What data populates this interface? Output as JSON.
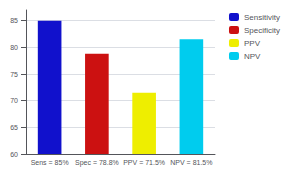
{
  "chart_data": {
    "type": "bar",
    "categories": [
      "Sens = 85%",
      "Spec = 78.8%",
      "PPV = 71.5%",
      "NPV = 81.5%"
    ],
    "series": [
      {
        "name": "Sensitivity",
        "color": "#1111cc",
        "values": [
          85,
          null,
          null,
          null
        ]
      },
      {
        "name": "Specificity",
        "color": "#cc1111",
        "values": [
          null,
          78.8,
          null,
          null
        ]
      },
      {
        "name": "PPV",
        "color": "#eeee00",
        "values": [
          null,
          null,
          71.5,
          null
        ]
      },
      {
        "name": "NPV",
        "color": "#00ccee",
        "values": [
          null,
          null,
          null,
          81.5
        ]
      }
    ],
    "ylim": [
      60,
      87
    ],
    "yticks": [
      60,
      65,
      70,
      75,
      80,
      85
    ],
    "grid": true,
    "legend": "right"
  }
}
